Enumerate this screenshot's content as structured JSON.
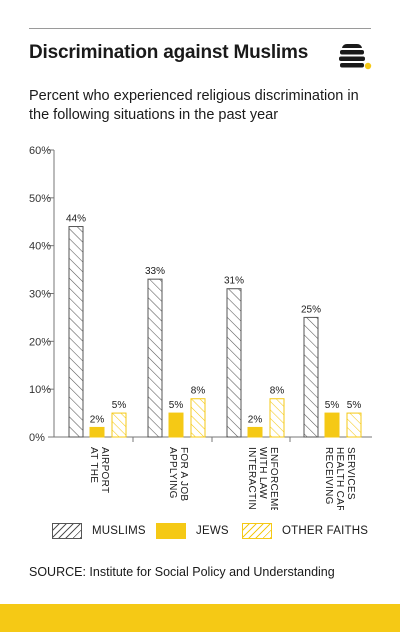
{
  "header": {
    "title": "Discrimination against Muslims",
    "subtitle": "Percent who experienced religious discrimination in the following situations in the past year"
  },
  "colors": {
    "muslims": "#555555",
    "jews": "#f5c915",
    "other_faiths": "#f5c915",
    "bottom_bar": "#f5c915"
  },
  "logo": {
    "icon": "beehive-icon"
  },
  "chart_data": {
    "type": "bar",
    "title": "Discrimination against Muslims",
    "subtitle": "Percent who experienced religious discrimination in the following situations in the past year",
    "categories": [
      [
        "AT THE",
        "AIRPORT"
      ],
      [
        "APPLYING",
        "FOR A JOB"
      ],
      [
        "INTERACTING",
        "WITH LAW",
        "ENFORCEMENT"
      ],
      [
        "RECEIVING",
        "HEALTH CARE",
        "SERVICES"
      ]
    ],
    "series": [
      {
        "name": "MUSLIMS",
        "values": [
          44,
          33,
          31,
          25
        ],
        "style": "hatched-gray"
      },
      {
        "name": "JEWS",
        "values": [
          2,
          5,
          2,
          5
        ],
        "style": "solid-yellow"
      },
      {
        "name": "OTHER FAITHS",
        "values": [
          5,
          8,
          8,
          5
        ],
        "style": "hatched-yellow"
      }
    ],
    "value_labels": [
      [
        "44%",
        "33%",
        "31%",
        "25%"
      ],
      [
        "2%",
        "5%",
        "2%",
        "5%"
      ],
      [
        "5%",
        "8%",
        "8%",
        "5%"
      ]
    ],
    "yticks": [
      "0%",
      "10%",
      "20%",
      "30%",
      "40%",
      "50%",
      "60%"
    ],
    "ylim": [
      0,
      60
    ],
    "xlabel": "",
    "ylabel": "",
    "grid": false,
    "legend_position": "bottom"
  },
  "legend": [
    {
      "label": "MUSLIMS"
    },
    {
      "label": "JEWS"
    },
    {
      "label": "OTHER FAITHS"
    }
  ],
  "source": "SOURCE: Institute for Social Policy and Understanding"
}
